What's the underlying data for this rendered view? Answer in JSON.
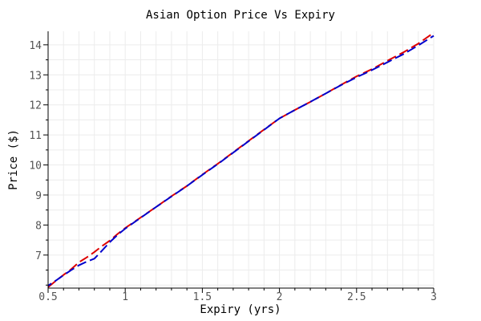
{
  "chart_data": {
    "type": "line",
    "title": "Asian Option Price Vs Expiry",
    "xlabel": "Expiry (yrs)",
    "ylabel": "Price ($)",
    "xlim": [
      0.5,
      3
    ],
    "ylim": [
      5.9,
      14.45
    ],
    "x_major_ticks": [
      0.5,
      1,
      1.5,
      2,
      2.5,
      3
    ],
    "x_tick_labels": [
      "0.5",
      "1",
      "1.5",
      "2",
      "2.5",
      "3"
    ],
    "y_major_ticks": [
      7,
      8,
      9,
      10,
      11,
      12,
      13,
      14
    ],
    "y_tick_labels": [
      "7",
      "8",
      "9",
      "10",
      "11",
      "12",
      "13",
      "14"
    ],
    "grid": true,
    "legend": "none",
    "series": [
      {
        "color": "#dd0000",
        "style": "dashed",
        "x": [
          0.5,
          0.55,
          0.6,
          0.65,
          0.7,
          0.75,
          0.8,
          0.85,
          0.9,
          0.95,
          1.0,
          1.1,
          1.2,
          1.3,
          1.4,
          1.5,
          1.6,
          1.7,
          1.8,
          1.9,
          2.0,
          2.1,
          2.2,
          2.3,
          2.4,
          2.5,
          2.6,
          2.7,
          2.8,
          2.9,
          3.0
        ],
        "y": [
          5.93,
          6.14,
          6.34,
          6.53,
          6.76,
          6.92,
          7.1,
          7.3,
          7.48,
          7.7,
          7.9,
          8.25,
          8.6,
          8.96,
          9.3,
          9.68,
          10.04,
          10.42,
          10.8,
          11.18,
          11.55,
          11.83,
          12.1,
          12.38,
          12.67,
          12.95,
          13.19,
          13.47,
          13.74,
          14.04,
          14.4
        ]
      },
      {
        "color": "#0000cc",
        "style": "dashed",
        "x": [
          0.5,
          0.55,
          0.6,
          0.65,
          0.7,
          0.75,
          0.8,
          0.85,
          0.9,
          0.95,
          1.0,
          1.1,
          1.2,
          1.3,
          1.4,
          1.5,
          1.6,
          1.7,
          1.8,
          1.9,
          2.0,
          2.1,
          2.2,
          2.3,
          2.4,
          2.5,
          2.6,
          2.7,
          2.8,
          2.9,
          3.0
        ],
        "y": [
          5.98,
          6.15,
          6.33,
          6.5,
          6.66,
          6.78,
          6.88,
          7.15,
          7.43,
          7.67,
          7.88,
          8.24,
          8.6,
          8.95,
          9.3,
          9.67,
          10.03,
          10.41,
          10.79,
          11.17,
          11.55,
          11.83,
          12.1,
          12.38,
          12.66,
          12.92,
          13.16,
          13.42,
          13.68,
          13.98,
          14.3
        ]
      }
    ]
  }
}
